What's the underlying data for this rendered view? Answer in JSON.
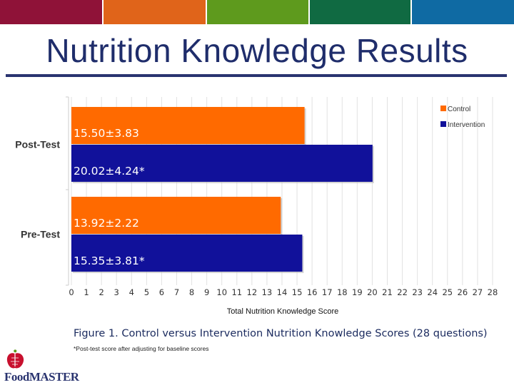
{
  "slide": {
    "title": "Nutrition Knowledge Results",
    "caption": "Figure 1. Control versus Intervention Nutrition Knowledge Scores (28 questions)",
    "footnote": "*Post-test score after adjusting for baseline scores",
    "logo_text": "FoodMASTER"
  },
  "colors": {
    "topbar": [
      "#8f1238",
      "#e0641a",
      "#5e9a1d",
      "#106a42",
      "#0f6aa3"
    ],
    "control": "#ff6a00",
    "intervention": "#11119a",
    "title": "#1f2d6b",
    "logo_apple": "#c8102e"
  },
  "chart_data": {
    "type": "bar",
    "orientation": "horizontal",
    "categories": [
      "Post-Test",
      "Pre-Test"
    ],
    "series": [
      {
        "name": "Control",
        "values": [
          15.5,
          13.92
        ],
        "labels": [
          "15.50±3.83",
          "13.92±2.22"
        ]
      },
      {
        "name": "Intervention",
        "values": [
          20.02,
          15.35
        ],
        "labels": [
          "20.02±4.24*",
          "15.35±3.81*"
        ]
      }
    ],
    "xlabel": "Total Nutrition Knowledge Score",
    "xlim": [
      0,
      28
    ],
    "xticks": [
      0,
      1,
      2,
      3,
      4,
      5,
      6,
      7,
      8,
      9,
      10,
      11,
      12,
      13,
      14,
      15,
      16,
      17,
      18,
      19,
      20,
      21,
      22,
      23,
      24,
      25,
      26,
      27,
      28
    ],
    "grid": true,
    "legend": "top-right"
  }
}
